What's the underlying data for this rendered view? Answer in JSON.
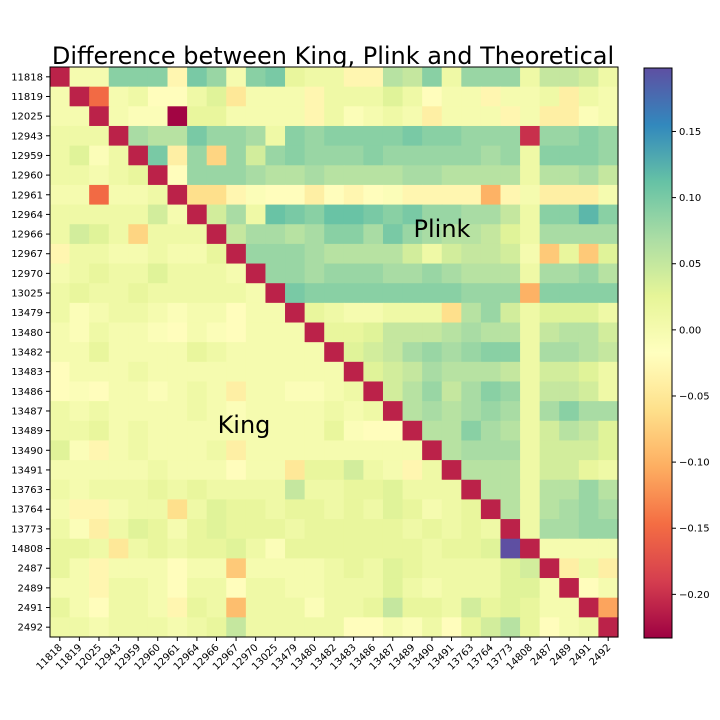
{
  "chart_data": {
    "type": "heatmap",
    "title": "Difference between King, Plink and Theoretical",
    "xlabel": "",
    "ylabel": "",
    "colormap": "Spectral",
    "vmin": -0.233,
    "vmax": 0.198,
    "colorbar": {
      "ticks": [
        0.15,
        0.1,
        0.05,
        0.0,
        -0.05,
        -0.1,
        -0.15,
        -0.2
      ],
      "tick_labels": [
        "0.15",
        "0.10",
        "0.05",
        "0.00",
        "−0.05",
        "−0.10",
        "−0.15",
        "−0.20"
      ]
    },
    "annotations": [
      {
        "text": "Plink",
        "region": "upper-triangle"
      },
      {
        "text": "King",
        "region": "lower-triangle"
      }
    ],
    "labels": [
      "11818",
      "11819",
      "12025",
      "12943",
      "12959",
      "12960",
      "12961",
      "12964",
      "12966",
      "12967",
      "12970",
      "13025",
      "13479",
      "13480",
      "13482",
      "13483",
      "13486",
      "13487",
      "13489",
      "13490",
      "13491",
      "13763",
      "13764",
      "13773",
      "14808",
      "2487",
      "2489",
      "2491",
      "2492"
    ],
    "matrix": [
      [
        -0.21,
        0.0,
        0.0,
        0.09,
        0.09,
        0.09,
        -0.03,
        0.1,
        0.08,
        0.0,
        0.09,
        0.1,
        0.02,
        0.01,
        0.01,
        -0.03,
        -0.03,
        0.06,
        0.05,
        0.09,
        0.01,
        0.08,
        0.08,
        0.08,
        0.01,
        0.05,
        0.05,
        0.04,
        0.01
      ],
      [
        0.0,
        -0.21,
        -0.15,
        0.0,
        0.01,
        -0.02,
        -0.02,
        0.01,
        0.03,
        -0.05,
        0.0,
        0.0,
        0.0,
        -0.03,
        0.01,
        0.01,
        0.01,
        0.03,
        0.01,
        -0.02,
        0.0,
        0.0,
        -0.03,
        0.0,
        0.0,
        0.01,
        -0.04,
        0.01,
        0.0
      ],
      [
        0.0,
        0.0,
        -0.21,
        0.0,
        -0.01,
        -0.01,
        -0.23,
        0.02,
        0.02,
        0.0,
        0.0,
        0.0,
        0.0,
        -0.03,
        0.01,
        -0.01,
        0.0,
        0.01,
        0.0,
        -0.04,
        0.0,
        0.0,
        0.0,
        -0.03,
        0.0,
        -0.04,
        -0.04,
        -0.01,
        0.0
      ],
      [
        0.01,
        0.01,
        0.01,
        -0.21,
        0.07,
        0.06,
        0.06,
        0.1,
        0.08,
        0.08,
        0.07,
        0.01,
        0.09,
        0.08,
        0.09,
        0.09,
        0.09,
        0.09,
        0.1,
        0.09,
        0.09,
        0.08,
        0.08,
        0.08,
        -0.2,
        0.08,
        0.08,
        0.09,
        0.08
      ],
      [
        0.01,
        0.03,
        -0.01,
        0.01,
        -0.21,
        0.1,
        -0.04,
        0.08,
        -0.07,
        0.08,
        0.04,
        0.08,
        0.09,
        0.08,
        0.08,
        0.08,
        0.09,
        0.08,
        0.08,
        0.08,
        0.08,
        0.08,
        0.07,
        0.08,
        0.01,
        0.09,
        0.09,
        0.09,
        0.08
      ],
      [
        0.01,
        0.01,
        0.0,
        0.01,
        0.02,
        -0.21,
        -0.02,
        0.08,
        0.08,
        0.08,
        0.07,
        0.06,
        0.06,
        0.07,
        0.06,
        0.06,
        0.06,
        0.06,
        0.07,
        0.07,
        0.06,
        0.06,
        0.06,
        0.06,
        0.01,
        0.06,
        0.06,
        0.07,
        0.05
      ],
      [
        0.0,
        0.0,
        -0.15,
        0.0,
        0.0,
        0.01,
        -0.21,
        -0.06,
        -0.06,
        -0.03,
        -0.01,
        -0.02,
        -0.02,
        -0.04,
        -0.02,
        -0.03,
        -0.02,
        -0.01,
        -0.03,
        -0.03,
        -0.03,
        -0.03,
        -0.1,
        -0.03,
        0.0,
        -0.04,
        -0.04,
        -0.04,
        0.0
      ],
      [
        0.01,
        0.01,
        0.01,
        0.01,
        0.01,
        0.04,
        0.0,
        -0.21,
        0.04,
        0.07,
        0.01,
        0.11,
        0.1,
        0.09,
        0.11,
        0.11,
        0.1,
        0.09,
        0.1,
        0.08,
        0.08,
        0.07,
        0.07,
        0.05,
        0.01,
        0.09,
        0.09,
        0.12,
        0.09
      ],
      [
        0.01,
        0.04,
        0.03,
        0.01,
        -0.07,
        0.01,
        0.01,
        0.01,
        -0.21,
        0.05,
        0.07,
        0.07,
        0.06,
        0.07,
        0.09,
        0.09,
        0.07,
        0.1,
        0.08,
        0.07,
        0.06,
        0.06,
        0.05,
        0.03,
        0.01,
        0.07,
        0.07,
        0.07,
        0.07
      ],
      [
        -0.03,
        0.01,
        0.01,
        0.0,
        0.0,
        0.01,
        0.0,
        0.0,
        0.02,
        -0.21,
        0.08,
        0.08,
        0.08,
        0.07,
        0.06,
        0.06,
        0.06,
        0.06,
        0.04,
        0.01,
        0.04,
        0.05,
        0.05,
        0.04,
        0.0,
        -0.08,
        0.02,
        -0.08,
        0.03
      ],
      [
        0.0,
        0.01,
        0.02,
        0.01,
        0.01,
        0.03,
        0.01,
        0.01,
        0.01,
        0.0,
        -0.21,
        0.08,
        0.08,
        0.07,
        0.08,
        0.08,
        0.08,
        0.07,
        0.07,
        0.08,
        0.07,
        0.06,
        0.06,
        0.06,
        0.01,
        0.07,
        0.07,
        0.08,
        0.06
      ],
      [
        0.01,
        0.02,
        0.01,
        0.01,
        0.02,
        0.01,
        0.01,
        0.01,
        0.01,
        0.01,
        0.0,
        -0.21,
        0.1,
        0.09,
        0.09,
        0.09,
        0.09,
        0.09,
        0.09,
        0.09,
        0.09,
        0.08,
        0.08,
        0.08,
        -0.1,
        0.09,
        0.09,
        0.09,
        0.09
      ],
      [
        0.01,
        -0.01,
        0.0,
        0.01,
        0.01,
        0.0,
        -0.01,
        0.0,
        0.0,
        -0.02,
        0.0,
        0.0,
        -0.21,
        0.02,
        0.01,
        0.0,
        0.0,
        0.01,
        0.01,
        0.01,
        -0.06,
        0.06,
        0.08,
        0.04,
        0.01,
        0.03,
        0.03,
        0.03,
        0.01
      ],
      [
        0.0,
        -0.01,
        0.01,
        0.0,
        0.0,
        -0.01,
        -0.02,
        0.0,
        -0.01,
        -0.02,
        0.0,
        0.0,
        0.0,
        -0.21,
        0.02,
        0.02,
        0.03,
        0.05,
        0.05,
        0.05,
        0.06,
        0.07,
        0.06,
        0.06,
        0.01,
        0.05,
        0.06,
        0.06,
        0.04
      ],
      [
        0.0,
        0.0,
        0.02,
        0.0,
        0.0,
        0.0,
        0.0,
        0.02,
        0.01,
        0.0,
        0.0,
        0.0,
        0.0,
        0.0,
        -0.21,
        0.03,
        0.04,
        0.05,
        0.07,
        0.08,
        0.07,
        0.08,
        0.09,
        0.09,
        0.01,
        0.07,
        0.07,
        0.06,
        0.05
      ],
      [
        -0.02,
        0.0,
        0.0,
        0.0,
        0.01,
        0.0,
        0.0,
        0.0,
        0.0,
        0.0,
        0.0,
        0.0,
        0.0,
        0.0,
        0.0,
        -0.21,
        0.03,
        0.04,
        0.05,
        0.07,
        0.06,
        0.06,
        0.06,
        0.05,
        0.01,
        0.04,
        0.04,
        0.03,
        0.01
      ],
      [
        -0.02,
        -0.01,
        -0.02,
        0.0,
        0.0,
        -0.01,
        0.0,
        0.01,
        0.0,
        -0.04,
        0.0,
        0.0,
        -0.01,
        -0.01,
        0.0,
        0.01,
        -0.21,
        0.04,
        0.06,
        0.08,
        0.05,
        0.07,
        0.09,
        0.08,
        0.01,
        0.05,
        0.05,
        0.04,
        0.01
      ],
      [
        0.01,
        0.0,
        0.01,
        0.0,
        0.0,
        0.0,
        0.0,
        0.01,
        0.0,
        -0.01,
        0.0,
        0.0,
        0.0,
        0.0,
        0.01,
        0.0,
        0.01,
        -0.21,
        0.06,
        0.07,
        0.06,
        0.07,
        0.08,
        0.07,
        0.01,
        0.07,
        0.09,
        0.07,
        0.07
      ],
      [
        0.01,
        0.01,
        0.02,
        0.0,
        0.01,
        0.0,
        0.0,
        0.0,
        0.0,
        0.0,
        0.0,
        0.0,
        0.0,
        0.0,
        0.02,
        -0.01,
        -0.02,
        -0.02,
        -0.21,
        0.06,
        0.06,
        0.09,
        0.07,
        0.06,
        0.01,
        0.04,
        0.06,
        0.05,
        0.03
      ],
      [
        0.03,
        -0.01,
        -0.03,
        0.0,
        0.01,
        0.0,
        0.0,
        0.0,
        0.01,
        -0.04,
        0.0,
        0.0,
        0.0,
        0.0,
        0.0,
        0.0,
        0.0,
        0.0,
        0.0,
        -0.21,
        0.06,
        0.07,
        0.07,
        0.07,
        0.01,
        0.04,
        0.04,
        0.04,
        0.03
      ],
      [
        0.0,
        0.0,
        0.0,
        0.0,
        0.0,
        0.01,
        0.0,
        0.0,
        0.0,
        -0.02,
        0.0,
        0.0,
        -0.05,
        0.02,
        0.02,
        0.04,
        0.01,
        0.0,
        -0.03,
        0.01,
        -0.21,
        0.06,
        0.06,
        0.06,
        0.01,
        0.04,
        0.04,
        0.02,
        0.01
      ],
      [
        0.01,
        0.0,
        0.01,
        0.01,
        0.01,
        0.02,
        0.01,
        0.02,
        0.01,
        0.01,
        0.01,
        0.01,
        0.05,
        0.01,
        0.01,
        0.02,
        0.02,
        0.03,
        0.01,
        0.01,
        0.01,
        -0.21,
        0.06,
        0.06,
        0.01,
        0.06,
        0.06,
        0.08,
        0.06
      ],
      [
        0.0,
        -0.03,
        -0.03,
        0.0,
        0.01,
        0.01,
        -0.06,
        0.01,
        0.03,
        0.02,
        0.02,
        0.01,
        0.02,
        0.02,
        0.01,
        0.02,
        0.01,
        0.03,
        0.02,
        0.0,
        0.01,
        0.02,
        -0.21,
        0.06,
        0.01,
        0.06,
        0.07,
        0.08,
        0.07
      ],
      [
        0.01,
        -0.01,
        -0.04,
        0.01,
        0.03,
        0.02,
        0.0,
        0.02,
        0.03,
        0.02,
        0.02,
        0.02,
        0.01,
        0.02,
        0.02,
        0.02,
        0.02,
        0.02,
        0.01,
        0.02,
        0.01,
        0.02,
        0.01,
        -0.21,
        0.01,
        0.07,
        0.07,
        0.08,
        0.08
      ],
      [
        0.02,
        0.02,
        0.01,
        -0.05,
        0.01,
        0.02,
        0.01,
        0.02,
        0.02,
        0.03,
        0.01,
        -0.01,
        0.02,
        0.02,
        0.02,
        0.02,
        0.02,
        0.02,
        0.02,
        0.01,
        0.02,
        0.02,
        0.03,
        0.198,
        -0.21,
        0.0,
        0.0,
        0.0,
        0.0
      ],
      [
        0.02,
        0.0,
        -0.03,
        0.0,
        0.0,
        0.0,
        -0.02,
        0.0,
        0.0,
        -0.08,
        0.0,
        0.0,
        0.0,
        0.0,
        0.01,
        0.02,
        0.01,
        0.03,
        0.02,
        0.01,
        0.01,
        0.01,
        0.01,
        0.03,
        0.04,
        -0.21,
        -0.04,
        0.01,
        -0.04
      ],
      [
        0.0,
        0.0,
        -0.03,
        0.01,
        0.01,
        0.0,
        -0.02,
        0.01,
        0.01,
        -0.02,
        0.01,
        0.01,
        0.0,
        0.0,
        0.01,
        0.01,
        0.01,
        0.03,
        0.01,
        0.0,
        0.01,
        0.01,
        0.01,
        0.03,
        0.03,
        0.0,
        -0.21,
        -0.02,
        0.0
      ],
      [
        0.02,
        0.0,
        -0.02,
        0.01,
        0.01,
        0.0,
        -0.03,
        0.02,
        0.01,
        -0.09,
        0.01,
        0.01,
        0.01,
        -0.01,
        0.01,
        0.01,
        0.02,
        0.05,
        0.02,
        0.02,
        0.01,
        0.04,
        0.02,
        0.03,
        0.02,
        0.0,
        0.0,
        -0.21,
        -0.11
      ],
      [
        0.01,
        0.01,
        0.0,
        0.01,
        0.01,
        0.01,
        0.0,
        0.01,
        0.02,
        0.05,
        0.01,
        0.01,
        0.01,
        0.01,
        0.01,
        -0.02,
        -0.02,
        0.0,
        -0.01,
        0.01,
        -0.02,
        0.02,
        0.04,
        0.06,
        0.02,
        -0.02,
        0.0,
        0.01,
        -0.21
      ]
    ]
  }
}
